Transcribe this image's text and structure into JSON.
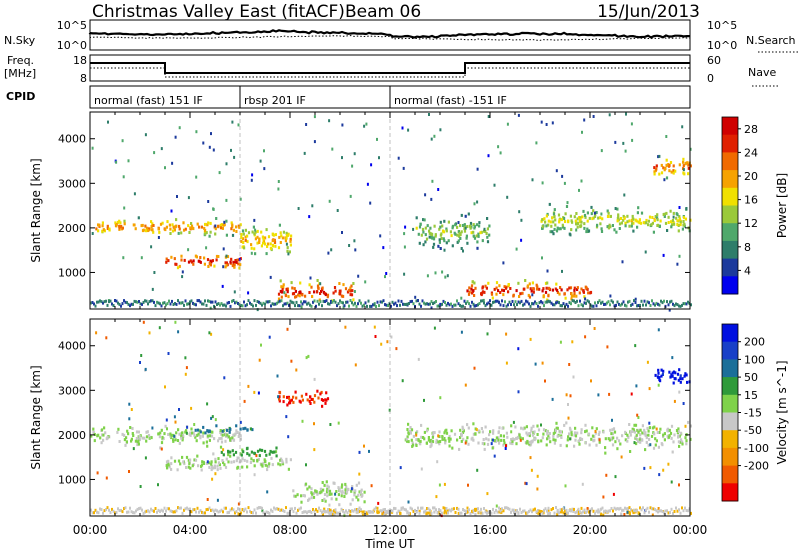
{
  "header": {
    "title": "Christmas Valley East (fitACF)",
    "beam": "Beam 06",
    "date": "15/Jun/2013"
  },
  "noise_panel": {
    "left_label": "N.Sky",
    "right_label": "N.Search",
    "left_ticks": [
      "10^5",
      "10^0"
    ],
    "right_ticks": [
      "10^5",
      "10^0"
    ]
  },
  "freq_panel": {
    "left_label": "Freq.",
    "left_unit": "[MHz]",
    "right_label": "Nave",
    "left_ticks": [
      "18",
      "8"
    ],
    "right_ticks": [
      "60",
      "0"
    ]
  },
  "cpid": {
    "label": "CPID",
    "segments": [
      {
        "name": "normal (fast) 151 IF",
        "start_h": 0,
        "end_h": 6
      },
      {
        "name": "rbsp 201 IF",
        "start_h": 6,
        "end_h": 12
      },
      {
        "name": "normal (fast) -151 IF",
        "start_h": 12,
        "end_h": 24
      }
    ]
  },
  "chart_data": [
    {
      "type": "heatmap",
      "title": "",
      "xlabel": "Time UT",
      "ylabel": "Slant Range [km]",
      "xlim": [
        0,
        24
      ],
      "ylim": [
        180,
        4600
      ],
      "xticks": [
        "00:00",
        "04:00",
        "08:00",
        "12:00",
        "16:00",
        "20:00",
        "00:00"
      ],
      "yticks": [
        "1000",
        "2000",
        "3000",
        "4000"
      ],
      "colorbar": {
        "label": "Power [dB]",
        "ticks": [
          "4",
          "8",
          "12",
          "16",
          "20",
          "24",
          "28"
        ],
        "range": [
          0,
          30
        ],
        "colors": [
          "#0000ee",
          "#1c3a9c",
          "#2e7d6a",
          "#4fa86b",
          "#9ac93a",
          "#f0e000",
          "#f6a200",
          "#f06a00",
          "#e02000",
          "#d00000"
        ]
      },
      "features": [
        {
          "t0": 0.2,
          "t1": 6.0,
          "r0": 1800,
          "r1": 2300,
          "level": 22
        },
        {
          "t0": 3.0,
          "t1": 6.0,
          "r0": 1050,
          "r1": 1500,
          "level": 28
        },
        {
          "t0": 6.0,
          "t1": 8.0,
          "r0": 1300,
          "r1": 2200,
          "level": 20
        },
        {
          "t0": 7.5,
          "t1": 10.5,
          "r0": 300,
          "r1": 900,
          "level": 28
        },
        {
          "t0": 13.0,
          "t1": 16.0,
          "r0": 1500,
          "r1": 2400,
          "level": 14
        },
        {
          "t0": 15.0,
          "t1": 20.0,
          "r0": 350,
          "r1": 900,
          "level": 28
        },
        {
          "t0": 18.0,
          "t1": 24.0,
          "r0": 1800,
          "r1": 2600,
          "level": 16
        },
        {
          "t0": 22.5,
          "t1": 24.0,
          "r0": 3100,
          "r1": 3700,
          "level": 24
        }
      ]
    },
    {
      "type": "heatmap",
      "title": "",
      "xlabel": "Time UT",
      "ylabel": "Slant Range [km]",
      "xlim": [
        0,
        24
      ],
      "ylim": [
        180,
        4600
      ],
      "xticks": [
        "00:00",
        "04:00",
        "08:00",
        "12:00",
        "16:00",
        "20:00",
        "00:00"
      ],
      "yticks": [
        "1000",
        "2000",
        "3000",
        "4000"
      ],
      "colorbar": {
        "label": "Velocity [m s^-1]",
        "ticks": [
          "200",
          "100",
          "50",
          "15",
          "-15",
          "-50",
          "-100",
          "-200"
        ],
        "range": [
          -250,
          250
        ],
        "colors": [
          "#ee0000",
          "#f05a00",
          "#f28f00",
          "#f2b200",
          "#c8c8c8",
          "#7fd24a",
          "#2f9a3a",
          "#1b6f99",
          "#1840c8",
          "#0010e0"
        ]
      },
      "features": [
        {
          "t0": 0.0,
          "t1": 6.0,
          "r0": 1700,
          "r1": 2300,
          "level": 0
        },
        {
          "t0": 3.0,
          "t1": 8.0,
          "r0": 1150,
          "r1": 1650,
          "level": 0
        },
        {
          "t0": 4.0,
          "t1": 6.5,
          "r0": 2050,
          "r1": 2250,
          "level": 120
        },
        {
          "t0": 5.0,
          "t1": 7.5,
          "r0": 1500,
          "r1": 1800,
          "level": 60
        },
        {
          "t0": 7.5,
          "t1": 9.5,
          "r0": 2600,
          "r1": 3100,
          "level": -200
        },
        {
          "t0": 8.0,
          "t1": 11.0,
          "r0": 400,
          "r1": 1100,
          "level": 0
        },
        {
          "t0": 12.5,
          "t1": 24.0,
          "r0": 1600,
          "r1": 2400,
          "level": 0
        },
        {
          "t0": 9.0,
          "t1": 22.0,
          "r0": 200,
          "r1": 400,
          "level": -60
        },
        {
          "t0": 22.5,
          "t1": 24.0,
          "r0": 3100,
          "r1": 3600,
          "level": 220
        }
      ]
    }
  ]
}
